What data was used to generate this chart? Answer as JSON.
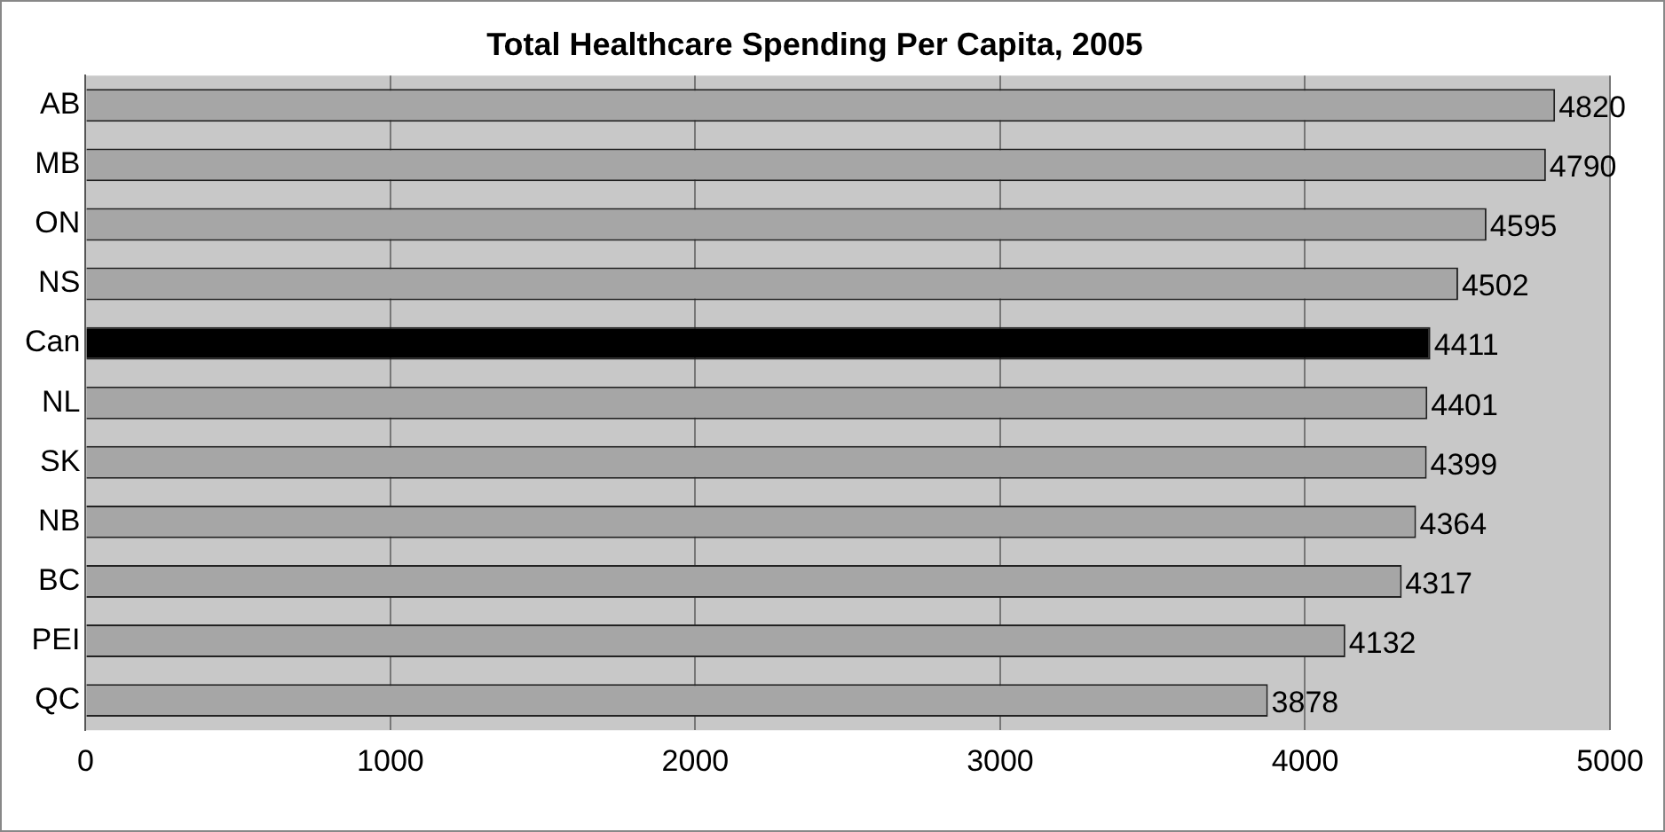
{
  "chart_data": {
    "type": "bar",
    "orientation": "horizontal",
    "title": "Total Healthcare Spending Per Capita, 2005",
    "categories": [
      "AB",
      "MB",
      "ON",
      "NS",
      "Can",
      "NL",
      "SK",
      "NB",
      "BC",
      "PEI",
      "QC"
    ],
    "values": [
      4820,
      4790,
      4595,
      4502,
      4411,
      4401,
      4399,
      4364,
      4317,
      4132,
      3878
    ],
    "colors": [
      "#a6a6a6",
      "#a6a6a6",
      "#a6a6a6",
      "#a6a6a6",
      "#000000",
      "#a6a6a6",
      "#a6a6a6",
      "#a6a6a6",
      "#a6a6a6",
      "#a6a6a6",
      "#a6a6a6"
    ],
    "xlim": [
      0,
      5000
    ],
    "xticks": [
      0,
      1000,
      2000,
      3000,
      4000,
      5000
    ],
    "grid": "x",
    "data_labels": true,
    "legend": false
  }
}
